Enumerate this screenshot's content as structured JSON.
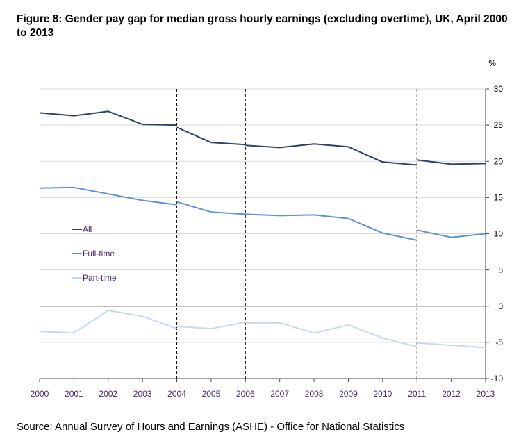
{
  "title": "Figure 8: Gender pay gap for median gross hourly earnings (excluding overtime), UK, April 2000 to 2013",
  "source": "Source: Annual Survey of Hours and Earnings (ASHE) - Office for National Statistics",
  "colors": {
    "all": "#2a4366",
    "full_time": "#5b93d6",
    "part_time": "#c5daf1",
    "tick_text": "#4a2a6a",
    "grid": "#d9d9d9"
  },
  "chart_data": {
    "type": "line",
    "unit_label": "%",
    "x": [
      "2000",
      "2001",
      "2002",
      "2003",
      "2004",
      "2005",
      "2006",
      "2007",
      "2008",
      "2009",
      "2010",
      "2011",
      "2012",
      "2013"
    ],
    "ylim": [
      -10,
      30
    ],
    "yticks": [
      30,
      25,
      20,
      15,
      10,
      5,
      0,
      -5,
      -10
    ],
    "y_axis_position": "right",
    "grid": true,
    "discontinuities": [
      "2004",
      "2006",
      "2011"
    ],
    "legend_position": "left-middle",
    "series": [
      {
        "name": "All",
        "color": "#2a4366",
        "segments": [
          {
            "x": [
              "2000",
              "2001",
              "2002",
              "2003",
              "2004"
            ],
            "values": [
              26.7,
              26.3,
              26.9,
              25.1,
              25.0
            ]
          },
          {
            "x": [
              "2004",
              "2005",
              "2006"
            ],
            "values": [
              24.7,
              22.6,
              22.3
            ]
          },
          {
            "x": [
              "2006",
              "2007",
              "2008",
              "2009",
              "2010",
              "2011"
            ],
            "values": [
              22.2,
              21.9,
              22.4,
              22.0,
              19.9,
              19.5
            ]
          },
          {
            "x": [
              "2011",
              "2012",
              "2013"
            ],
            "values": [
              20.2,
              19.6,
              19.7
            ]
          }
        ]
      },
      {
        "name": "Full-time",
        "color": "#5b93d6",
        "segments": [
          {
            "x": [
              "2000",
              "2001",
              "2002",
              "2003",
              "2004"
            ],
            "values": [
              16.3,
              16.4,
              15.5,
              14.6,
              14.0
            ]
          },
          {
            "x": [
              "2004",
              "2005",
              "2006"
            ],
            "values": [
              14.4,
              13.0,
              12.7
            ]
          },
          {
            "x": [
              "2006",
              "2007",
              "2008",
              "2009",
              "2010",
              "2011"
            ],
            "values": [
              12.7,
              12.5,
              12.6,
              12.1,
              10.1,
              9.1
            ]
          },
          {
            "x": [
              "2011",
              "2012",
              "2013"
            ],
            "values": [
              10.5,
              9.5,
              10.0
            ]
          }
        ]
      },
      {
        "name": "Part-time",
        "color": "#c5daf1",
        "segments": [
          {
            "x": [
              "2000",
              "2001",
              "2002",
              "2003",
              "2004"
            ],
            "values": [
              -3.5,
              -3.7,
              -0.6,
              -1.4,
              -3.1
            ]
          },
          {
            "x": [
              "2004",
              "2005",
              "2006"
            ],
            "values": [
              -2.8,
              -3.1,
              -2.2
            ]
          },
          {
            "x": [
              "2006",
              "2007",
              "2008",
              "2009",
              "2010",
              "2011"
            ],
            "values": [
              -2.3,
              -2.3,
              -3.7,
              -2.6,
              -4.4,
              -5.6
            ]
          },
          {
            "x": [
              "2011",
              "2012",
              "2013"
            ],
            "values": [
              -5.1,
              -5.4,
              -5.7
            ]
          }
        ]
      }
    ]
  }
}
